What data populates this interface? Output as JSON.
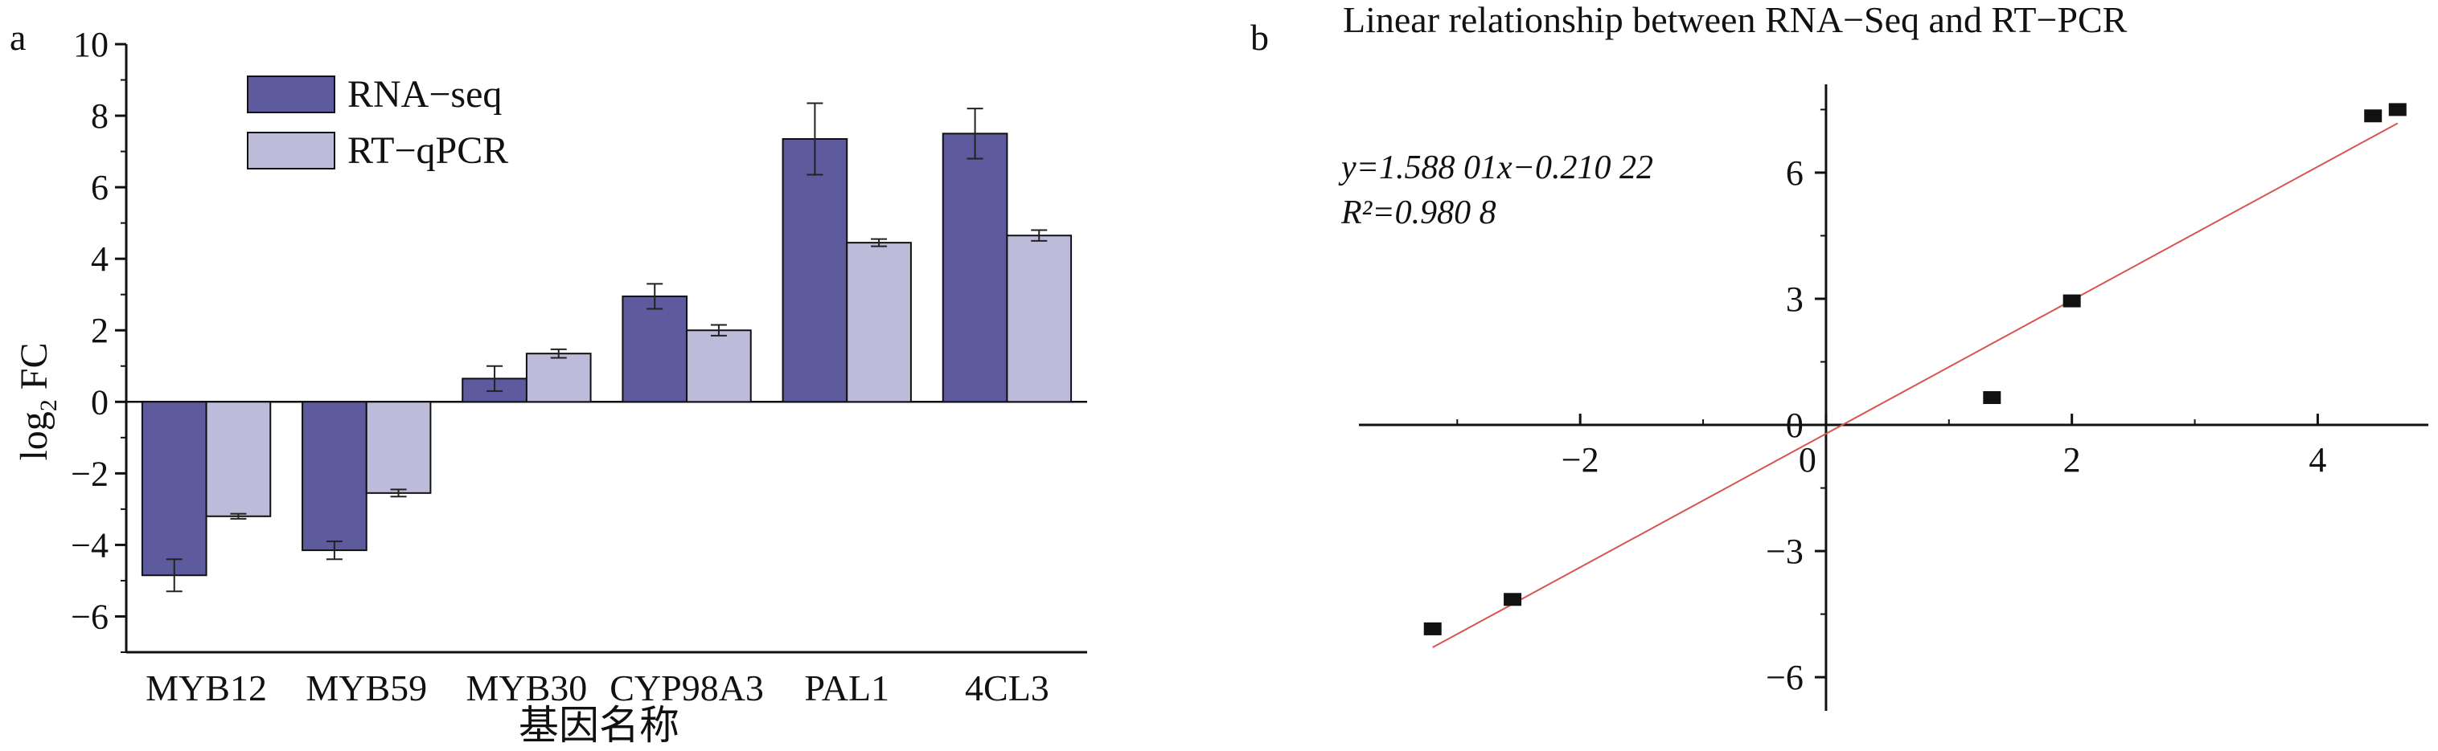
{
  "chart_data": [
    {
      "panel_label": "a",
      "type": "bar",
      "categories": [
        "MYB12",
        "MYB59",
        "MYB30",
        "CYP98A3",
        "PAL1",
        "4CL3"
      ],
      "series": [
        {
          "name": "RNA−seq",
          "color": "#5d5a9e",
          "values": [
            -4.85,
            -4.15,
            0.65,
            2.95,
            7.35,
            7.5
          ],
          "errors": [
            0.45,
            0.25,
            0.35,
            0.35,
            1.0,
            0.7
          ]
        },
        {
          "name": "RT−qPCR",
          "color": "#bcbbd9",
          "values": [
            -3.2,
            -2.55,
            1.35,
            2.0,
            4.45,
            4.65
          ],
          "errors": [
            0.07,
            0.1,
            0.12,
            0.15,
            0.1,
            0.15
          ]
        }
      ],
      "xlabel": "基因名称",
      "ylabel_main": "log",
      "ylabel_sub": "2",
      "ylabel_tail": " FC",
      "ylim": [
        -7,
        10
      ],
      "yticks": [
        -6,
        -4,
        -2,
        0,
        2,
        4,
        6,
        8,
        10
      ],
      "ytick_labels": [
        "−6",
        "−4",
        "−2",
        "0",
        "2",
        "4",
        "6",
        "8",
        "10"
      ],
      "legend_position": "top-left"
    },
    {
      "panel_label": "b",
      "type": "scatter",
      "title": "Linear relationship between RNA−Seq and RT−PCR",
      "points": [
        {
          "x": -3.2,
          "y": -4.85
        },
        {
          "x": -2.55,
          "y": -4.15
        },
        {
          "x": 1.35,
          "y": 0.65
        },
        {
          "x": 2.0,
          "y": 2.95
        },
        {
          "x": 4.45,
          "y": 7.35
        },
        {
          "x": 4.65,
          "y": 7.5
        }
      ],
      "fit": {
        "slope": 1.58801,
        "intercept": -0.21022,
        "x_range": [
          -3.2,
          4.65
        ],
        "color": "#d9534f"
      },
      "equation_text": "y=1.588 01x−0.210 22",
      "r2_text": "R²=0.980 8",
      "xlim": [
        -3.8,
        4.9
      ],
      "ylim": [
        -6.8,
        8.1
      ],
      "xticks": [
        -2,
        0,
        2,
        4
      ],
      "xtick_labels": [
        "−2",
        "0",
        "2",
        "4"
      ],
      "xminor": [
        -3,
        -1,
        1,
        3
      ],
      "yticks": [
        -6,
        -3,
        0,
        3,
        6
      ],
      "ytick_labels": [
        "−6",
        "−3",
        "0",
        "3",
        "6"
      ]
    }
  ]
}
